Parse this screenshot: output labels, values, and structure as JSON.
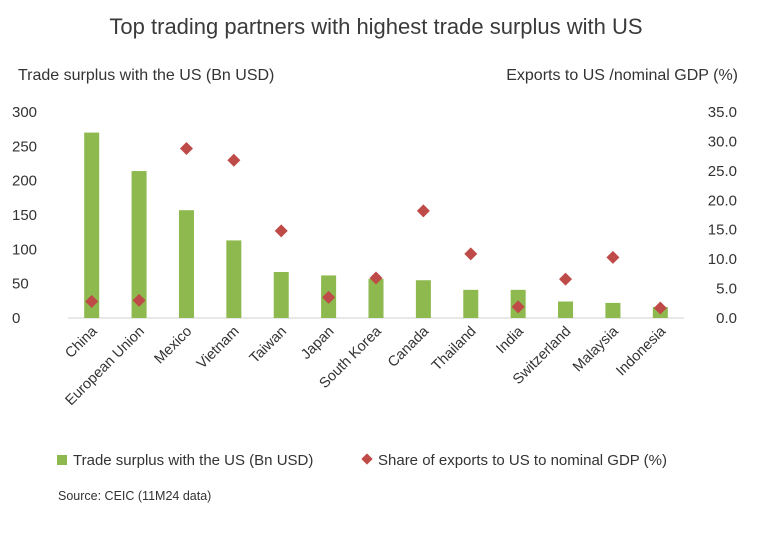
{
  "chart_data": {
    "type": "bar",
    "title": "Top trading partners with highest trade surplus with US",
    "ylabel_left": "Trade surplus with the US (Bn USD)",
    "ylabel_right": "Exports to US /nominal GDP (%)",
    "categories": [
      "China",
      "European Union",
      "Mexico",
      "Vietnam",
      "Taiwan",
      "Japan",
      "South Korea",
      "Canada",
      "Thailand",
      "India",
      "Switzerland",
      "Malaysia",
      "Indonesia"
    ],
    "series": [
      {
        "name": "Trade surplus with the US (Bn USD)",
        "type": "bar",
        "axis": "left",
        "color": "#8DB94E",
        "values": [
          270,
          214,
          157,
          113,
          67,
          62,
          57,
          55,
          41,
          41,
          24,
          22,
          16
        ]
      },
      {
        "name": "Share of exports to US to nominal GDP (%)",
        "type": "scatter",
        "marker": "diamond",
        "axis": "right",
        "color": "#BE4B48",
        "values": [
          2.8,
          3.0,
          28.8,
          26.8,
          14.8,
          3.5,
          6.8,
          18.2,
          10.9,
          1.9,
          6.6,
          10.3,
          1.7
        ]
      }
    ],
    "ylim_left": [
      0,
      300
    ],
    "yticks_left": [
      "0",
      "50",
      "100",
      "150",
      "200",
      "250",
      "300"
    ],
    "ylim_right": [
      0,
      35
    ],
    "yticks_right": [
      "0.0",
      "5.0",
      "10.0",
      "15.0",
      "20.0",
      "25.0",
      "30.0",
      "35.0"
    ],
    "grid": false,
    "legend_position": "bottom",
    "source": "Source: CEIC (11M24 data)"
  }
}
